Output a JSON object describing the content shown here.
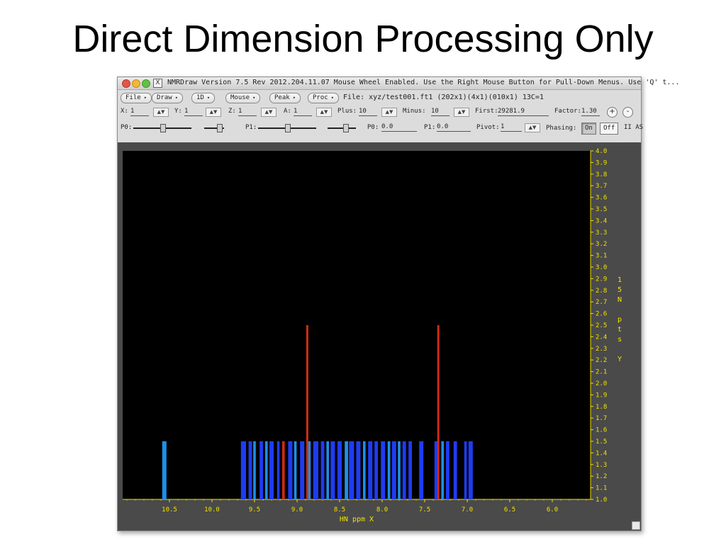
{
  "slide": {
    "title": "Direct Dimension Processing Only"
  },
  "window": {
    "title": "NMRDraw Version 7.5 Rev 2012.204.11.07  Mouse Wheel Enabled.  Use the Right Mouse Button for Pull-Down Menus.  Use 'Q' t..."
  },
  "menus": [
    {
      "label": "File"
    },
    {
      "label": "Draw"
    },
    {
      "label": "1D"
    },
    {
      "label": "Mouse"
    },
    {
      "label": "Peak"
    },
    {
      "label": "Proc"
    }
  ],
  "file_info": "File: xyz/test001.ft1 (202x1)(4x1)(010x1) 13C=1",
  "row2": {
    "x_label": "X:",
    "x_value": "1",
    "y_label": "Y:",
    "y_value": "1",
    "z_label": "Z:",
    "z_value": "1",
    "a_label": "A:",
    "a_value": "1",
    "plus_label": "Plus:",
    "plus_value": "10",
    "minus_label": "Minus:",
    "minus_value": "10",
    "first_label": "First:",
    "first_value": "29281.9",
    "factor_label": "Factor:",
    "factor_value": "1.30",
    "plus_btn": "+",
    "minus_btn": "-"
  },
  "row3": {
    "p0_slider_label": "P0:",
    "p1_slider_label": "P1:",
    "p0_label": "P0:",
    "p0_value": "0.0",
    "p1_label": "P1:",
    "p1_value": "0.0",
    "pivot_label": "Pivot:",
    "pivot_value": "1",
    "phasing_label": "Phasing:",
    "on_label": "On",
    "off_label": "Off",
    "extra_label": "II AS"
  },
  "spin_glyph": "▲▼",
  "colors": {
    "plot_bg": "#000000",
    "axis": "#f2e200",
    "peak_red": "#d22a14",
    "bar_blue": "#1f3cf0",
    "bar_cyan": "#1e8fe6"
  },
  "chart_data": {
    "type": "bar",
    "xlabel": "HN ppm X",
    "ylabel_vertical": [
      "1",
      "5",
      "N",
      "",
      "p",
      "t",
      "s",
      "",
      "Y"
    ],
    "x_ticks": [
      "10.5",
      "10.0",
      "9.5",
      "9.0",
      "8.5",
      "8.0",
      "7.5",
      "7.0",
      "6.5",
      "6.0"
    ],
    "y_ticks": [
      "4.0",
      "3.9",
      "3.8",
      "3.7",
      "3.6",
      "3.5",
      "3.4",
      "3.3",
      "3.2",
      "3.1",
      "3.0",
      "2.9",
      "2.8",
      "2.7",
      "2.6",
      "2.5",
      "2.4",
      "2.3",
      "2.2",
      "2.1",
      "2.0",
      "1.9",
      "1.8",
      "1.7",
      "1.6",
      "1.5",
      "1.4",
      "1.3",
      "1.2",
      "1.1",
      "1.0"
    ],
    "xlim": [
      11.05,
      5.55
    ],
    "ylim": [
      1.0,
      4.0
    ],
    "tall_peaks": [
      {
        "x": 8.88,
        "y": 2.5
      },
      {
        "x": 7.34,
        "y": 2.5
      }
    ],
    "base_level": 1.5,
    "bars": [
      {
        "x": 10.56,
        "w": 0.05,
        "c": "cyan"
      },
      {
        "x": 9.63,
        "w": 0.06,
        "c": "blue"
      },
      {
        "x": 9.55,
        "w": 0.04,
        "c": "blue"
      },
      {
        "x": 9.5,
        "w": 0.03,
        "c": "cyan"
      },
      {
        "x": 9.42,
        "w": 0.04,
        "c": "blue"
      },
      {
        "x": 9.36,
        "w": 0.03,
        "c": "cyan"
      },
      {
        "x": 9.3,
        "w": 0.05,
        "c": "blue"
      },
      {
        "x": 9.22,
        "w": 0.03,
        "c": "blue"
      },
      {
        "x": 9.16,
        "w": 0.03,
        "c": "red"
      },
      {
        "x": 9.08,
        "w": 0.05,
        "c": "blue"
      },
      {
        "x": 9.02,
        "w": 0.03,
        "c": "cyan"
      },
      {
        "x": 8.94,
        "w": 0.05,
        "c": "blue"
      },
      {
        "x": 8.86,
        "w": 0.04,
        "c": "cyan"
      },
      {
        "x": 8.78,
        "w": 0.06,
        "c": "blue"
      },
      {
        "x": 8.7,
        "w": 0.04,
        "c": "blue"
      },
      {
        "x": 8.64,
        "w": 0.03,
        "c": "cyan"
      },
      {
        "x": 8.58,
        "w": 0.05,
        "c": "blue"
      },
      {
        "x": 8.5,
        "w": 0.05,
        "c": "blue"
      },
      {
        "x": 8.42,
        "w": 0.04,
        "c": "cyan"
      },
      {
        "x": 8.36,
        "w": 0.06,
        "c": "blue"
      },
      {
        "x": 8.28,
        "w": 0.05,
        "c": "blue"
      },
      {
        "x": 8.21,
        "w": 0.03,
        "c": "cyan"
      },
      {
        "x": 8.14,
        "w": 0.05,
        "c": "blue"
      },
      {
        "x": 8.07,
        "w": 0.04,
        "c": "blue"
      },
      {
        "x": 7.99,
        "w": 0.05,
        "c": "blue"
      },
      {
        "x": 7.92,
        "w": 0.03,
        "c": "cyan"
      },
      {
        "x": 7.86,
        "w": 0.05,
        "c": "blue"
      },
      {
        "x": 7.8,
        "w": 0.03,
        "c": "cyan"
      },
      {
        "x": 7.74,
        "w": 0.04,
        "c": "blue"
      },
      {
        "x": 7.67,
        "w": 0.04,
        "c": "blue"
      },
      {
        "x": 7.54,
        "w": 0.05,
        "c": "blue"
      },
      {
        "x": 7.36,
        "w": 0.05,
        "c": "blue"
      },
      {
        "x": 7.29,
        "w": 0.03,
        "c": "cyan"
      },
      {
        "x": 7.23,
        "w": 0.04,
        "c": "blue"
      },
      {
        "x": 7.14,
        "w": 0.04,
        "c": "blue"
      },
      {
        "x": 7.02,
        "w": 0.03,
        "c": "blue"
      },
      {
        "x": 6.96,
        "w": 0.05,
        "c": "blue"
      }
    ]
  }
}
